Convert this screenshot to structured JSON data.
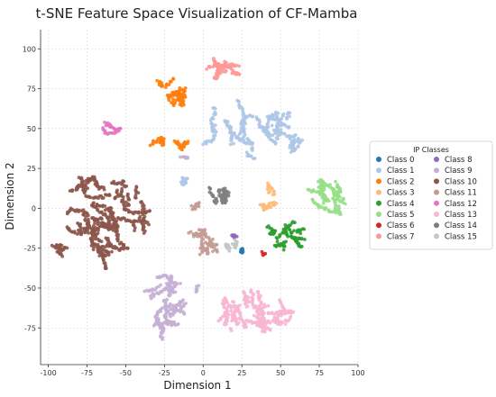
{
  "chart_data": {
    "type": "scatter",
    "title": "t-SNE Feature Space Visualization of CF-Mamba",
    "xlabel": "Dimension 1",
    "ylabel": "Dimension 2",
    "xlim": [
      -105,
      100
    ],
    "ylim": [
      -98,
      112
    ],
    "xticks": [
      -100,
      -75,
      -50,
      -25,
      0,
      25,
      50,
      75,
      100
    ],
    "yticks": [
      -75,
      -50,
      -25,
      0,
      25,
      50,
      75,
      100
    ],
    "grid": true,
    "legend": {
      "title": "IP Classes",
      "placement": "right",
      "columns": 2
    },
    "series": [
      {
        "name": "Class 0",
        "color": "#1f77b4",
        "clusters": [
          [
            27,
            -27,
            3,
            2,
            8
          ]
        ]
      },
      {
        "name": "Class 1",
        "color": "#aec7e8",
        "clusters": [
          [
            28,
            50,
            28,
            17,
            260
          ],
          [
            55,
            44,
            10,
            8,
            60
          ],
          [
            -12,
            17,
            7,
            2,
            20
          ]
        ]
      },
      {
        "name": "Class 2",
        "color": "#ff7f0e",
        "clusters": [
          [
            -22,
            74,
            9,
            9,
            70
          ],
          [
            -12,
            68,
            5,
            3,
            20
          ],
          [
            -30,
            42,
            6,
            3,
            30
          ],
          [
            -15,
            40,
            6,
            3,
            25
          ]
        ]
      },
      {
        "name": "Class 3",
        "color": "#ffbb78",
        "clusters": [
          [
            42,
            6,
            5,
            8,
            45
          ]
        ]
      },
      {
        "name": "Class 4",
        "color": "#2ca02c",
        "clusters": [
          [
            55,
            -18,
            10,
            9,
            90
          ],
          [
            44,
            -12,
            4,
            4,
            20
          ]
        ]
      },
      {
        "name": "Class 5",
        "color": "#98df8a",
        "clusters": [
          [
            78,
            4,
            12,
            12,
            150
          ]
        ]
      },
      {
        "name": "Class 6",
        "color": "#d62728",
        "clusters": [
          [
            38,
            -28,
            1.5,
            1.5,
            5
          ]
        ]
      },
      {
        "name": "Class 7",
        "color": "#ff9896",
        "clusters": [
          [
            13,
            88,
            11,
            7,
            90
          ]
        ]
      },
      {
        "name": "Class 8",
        "color": "#9467bd",
        "clusters": [
          [
            22,
            -17,
            3,
            1.5,
            8
          ]
        ]
      },
      {
        "name": "Class 9",
        "color": "#c5b0d5",
        "clusters": [
          [
            -25,
            -62,
            12,
            18,
            200
          ],
          [
            -14,
            32,
            4,
            2,
            12
          ],
          [
            -5,
            -50,
            2,
            2,
            5
          ]
        ]
      },
      {
        "name": "Class 10",
        "color": "#8c564b",
        "clusters": [
          [
            -62,
            -5,
            24,
            22,
            420
          ],
          [
            -75,
            15,
            12,
            5,
            70
          ],
          [
            -94,
            -25,
            5,
            5,
            30
          ],
          [
            -65,
            -30,
            5,
            8,
            45
          ]
        ]
      },
      {
        "name": "Class 11",
        "color": "#c49c94",
        "clusters": [
          [
            2,
            -20,
            11,
            8,
            90
          ],
          [
            -3,
            0,
            4,
            3,
            20
          ]
        ]
      },
      {
        "name": "Class 12",
        "color": "#e377c2",
        "clusters": [
          [
            -59,
            50,
            5,
            5,
            35
          ]
        ]
      },
      {
        "name": "Class 13",
        "color": "#f7b6d2",
        "clusters": [
          [
            33,
            -65,
            22,
            12,
            280
          ]
        ]
      },
      {
        "name": "Class 14",
        "color": "#7f7f7f",
        "clusters": [
          [
            10,
            8,
            7,
            5,
            65
          ]
        ]
      },
      {
        "name": "Class 15",
        "color": "#c7c7c7",
        "clusters": [
          [
            18,
            -22,
            4,
            4,
            25
          ]
        ]
      }
    ]
  }
}
